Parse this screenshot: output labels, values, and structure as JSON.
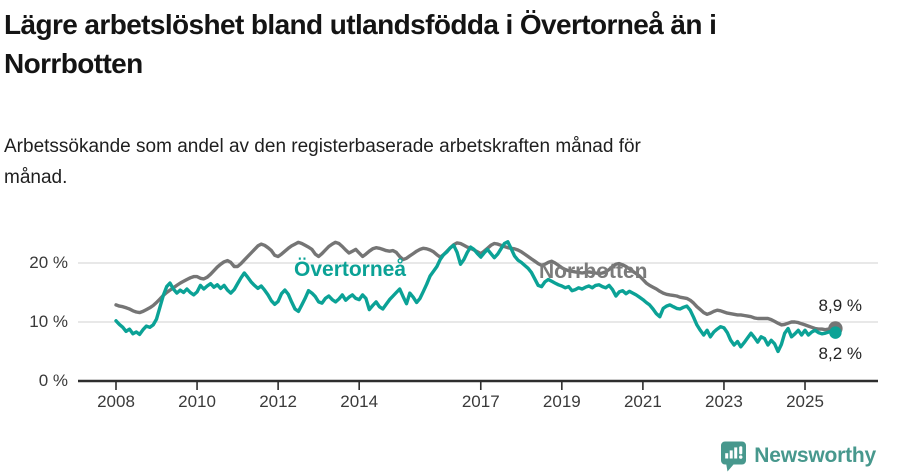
{
  "header": {
    "title_line1": "Lägre arbetslöshet bland utlandsfödda i Övertorneå än i",
    "title_line2": "Norrbotten",
    "subtitle_line1": "Arbetssökande som andel av den registerbaserade arbetskraften månad för",
    "subtitle_line2": "månad."
  },
  "chart_data": {
    "type": "line",
    "title": "Lägre arbetslöshet bland utlandsfödda i Övertorneå än i Norrbotten",
    "subtitle": "Arbetssökande som andel av den registerbaserade arbetskraften månad för månad.",
    "x_start": 2008.0,
    "x_step": "monthly",
    "x_end": 2025.75,
    "x_ticks": [
      2008,
      2010,
      2012,
      2014,
      2017,
      2019,
      2021,
      2023,
      2025
    ],
    "y_ticks": [
      {
        "value": 0,
        "label": "0 %"
      },
      {
        "value": 10,
        "label": "10 %"
      },
      {
        "value": 20,
        "label": "20 %"
      }
    ],
    "ylim": [
      0,
      26
    ],
    "grid": "horizontal",
    "legend_position": "inline-labels",
    "end_labels": {
      "norrbotten": "8,9 %",
      "overtornea": "8,2 %"
    },
    "series": [
      {
        "name": "Norrbotten",
        "color": "#757575",
        "end_value": 8.9,
        "values": [
          12.9,
          12.7,
          12.6,
          12.4,
          12.2,
          11.9,
          11.7,
          11.6,
          11.8,
          12.1,
          12.4,
          12.8,
          13.3,
          13.9,
          14.5,
          15.0,
          15.4,
          15.8,
          16.2,
          16.6,
          16.9,
          17.2,
          17.5,
          17.7,
          17.7,
          17.4,
          17.3,
          17.6,
          18.1,
          18.7,
          19.3,
          19.8,
          20.2,
          20.4,
          20.1,
          19.4,
          19.4,
          19.9,
          20.5,
          21.1,
          21.7,
          22.3,
          22.9,
          23.2,
          23.0,
          22.6,
          22.1,
          21.3,
          21.1,
          21.5,
          22.0,
          22.5,
          22.9,
          23.2,
          23.5,
          23.3,
          23.0,
          22.7,
          22.3,
          21.5,
          21.1,
          21.6,
          22.2,
          22.8,
          23.2,
          23.5,
          23.3,
          22.8,
          22.2,
          21.7,
          22.0,
          22.3,
          21.7,
          21.1,
          21.5,
          22.0,
          22.4,
          22.6,
          22.5,
          22.3,
          22.1,
          22.0,
          22.1,
          21.8,
          21.1,
          20.6,
          20.8,
          21.2,
          21.6,
          22.0,
          22.3,
          22.5,
          22.4,
          22.2,
          21.9,
          21.4,
          21.0,
          21.4,
          22.0,
          22.6,
          23.1,
          23.4,
          23.3,
          23.0,
          22.7,
          22.5,
          22.2,
          21.9,
          21.6,
          22.0,
          22.5,
          23.0,
          23.3,
          23.2,
          23.0,
          22.8,
          22.6,
          22.5,
          22.4,
          22.2,
          21.9,
          21.5,
          21.1,
          20.7,
          20.3,
          19.9,
          19.6,
          19.8,
          20.1,
          20.3,
          20.0,
          19.6,
          19.2,
          18.9,
          18.7,
          18.6,
          18.5,
          18.4,
          18.3,
          18.4,
          18.5,
          18.4,
          18.3,
          18.2,
          18.3,
          18.5,
          18.9,
          19.4,
          19.8,
          19.9,
          19.7,
          19.4,
          19.0,
          18.6,
          18.2,
          17.8,
          17.2,
          16.6,
          16.2,
          15.9,
          15.6,
          15.2,
          14.9,
          14.7,
          14.6,
          14.5,
          14.4,
          14.2,
          14.1,
          14.0,
          13.7,
          13.2,
          12.6,
          12.1,
          11.6,
          11.3,
          11.5,
          11.8,
          12.0,
          11.9,
          11.7,
          11.5,
          11.4,
          11.3,
          11.2,
          11.2,
          11.1,
          11.0,
          10.9,
          10.7,
          10.6,
          10.6,
          10.6,
          10.6,
          10.4,
          10.1,
          9.8,
          9.5,
          9.6,
          9.8,
          10.0,
          10.0,
          9.9,
          9.7,
          9.5,
          9.3,
          9.1,
          8.9,
          8.8,
          8.8,
          8.7,
          8.8,
          8.9,
          8.9
        ]
      },
      {
        "name": "Övertorneå",
        "color": "#0ba296",
        "end_value": 8.2,
        "values": [
          10.2,
          9.6,
          9.1,
          8.4,
          8.8,
          8.0,
          8.3,
          7.9,
          8.7,
          9.3,
          9.1,
          9.5,
          10.5,
          12.5,
          14.5,
          16.0,
          16.6,
          15.6,
          14.9,
          15.4,
          15.0,
          15.6,
          15.0,
          14.6,
          15.1,
          16.2,
          15.6,
          16.1,
          16.5,
          15.9,
          16.3,
          15.7,
          16.2,
          15.4,
          14.9,
          15.5,
          16.5,
          17.5,
          18.3,
          17.6,
          16.8,
          16.2,
          15.7,
          16.1,
          15.4,
          14.6,
          13.6,
          13.0,
          13.5,
          14.8,
          15.4,
          14.7,
          13.4,
          12.2,
          11.8,
          12.9,
          14.0,
          15.3,
          14.9,
          14.3,
          13.4,
          13.2,
          14.0,
          14.4,
          13.8,
          13.4,
          13.9,
          14.6,
          13.7,
          14.2,
          14.6,
          14.0,
          13.8,
          14.6,
          14.0,
          12.1,
          12.8,
          13.4,
          12.6,
          12.2,
          13.0,
          13.8,
          14.4,
          15.0,
          15.6,
          14.3,
          13.1,
          14.9,
          14.2,
          13.3,
          14.0,
          15.2,
          16.4,
          17.8,
          18.6,
          19.4,
          20.6,
          21.4,
          21.9,
          22.6,
          23.0,
          21.8,
          19.8,
          20.6,
          21.8,
          22.7,
          22.3,
          21.6,
          21.0,
          21.7,
          22.3,
          21.6,
          20.9,
          21.5,
          22.4,
          23.3,
          23.6,
          22.4,
          21.2,
          20.5,
          20.1,
          19.6,
          19.1,
          18.4,
          17.3,
          16.2,
          16.0,
          16.8,
          17.2,
          16.9,
          16.6,
          16.3,
          16.1,
          15.8,
          16.0,
          15.3,
          15.5,
          15.8,
          15.6,
          15.9,
          16.1,
          15.8,
          16.2,
          16.3,
          16.0,
          15.8,
          16.2,
          15.5,
          14.4,
          15.1,
          15.3,
          14.8,
          15.2,
          14.9,
          14.6,
          14.2,
          13.8,
          13.3,
          12.9,
          12.2,
          11.4,
          10.9,
          12.3,
          12.7,
          12.9,
          12.6,
          12.3,
          12.2,
          12.5,
          12.7,
          12.0,
          10.8,
          9.5,
          8.6,
          7.8,
          8.6,
          7.5,
          8.3,
          8.8,
          9.2,
          9.0,
          8.2,
          6.9,
          6.1,
          6.7,
          5.8,
          6.5,
          7.3,
          8.1,
          7.4,
          6.6,
          7.5,
          7.2,
          6.1,
          6.9,
          6.3,
          5.0,
          6.2,
          8.1,
          8.9,
          7.5,
          8.0,
          8.6,
          7.8,
          8.6,
          7.8,
          8.3,
          8.6,
          8.2,
          8.0,
          8.1,
          8.3,
          8.4,
          8.2
        ]
      }
    ]
  },
  "colors": {
    "overtornea": "#0ba296",
    "norrbotten": "#757575",
    "axis": "#2e2e2e",
    "gridline": "#d9d9d9",
    "brand": "#47988d"
  },
  "footer": {
    "brand": "Newsworthy"
  }
}
